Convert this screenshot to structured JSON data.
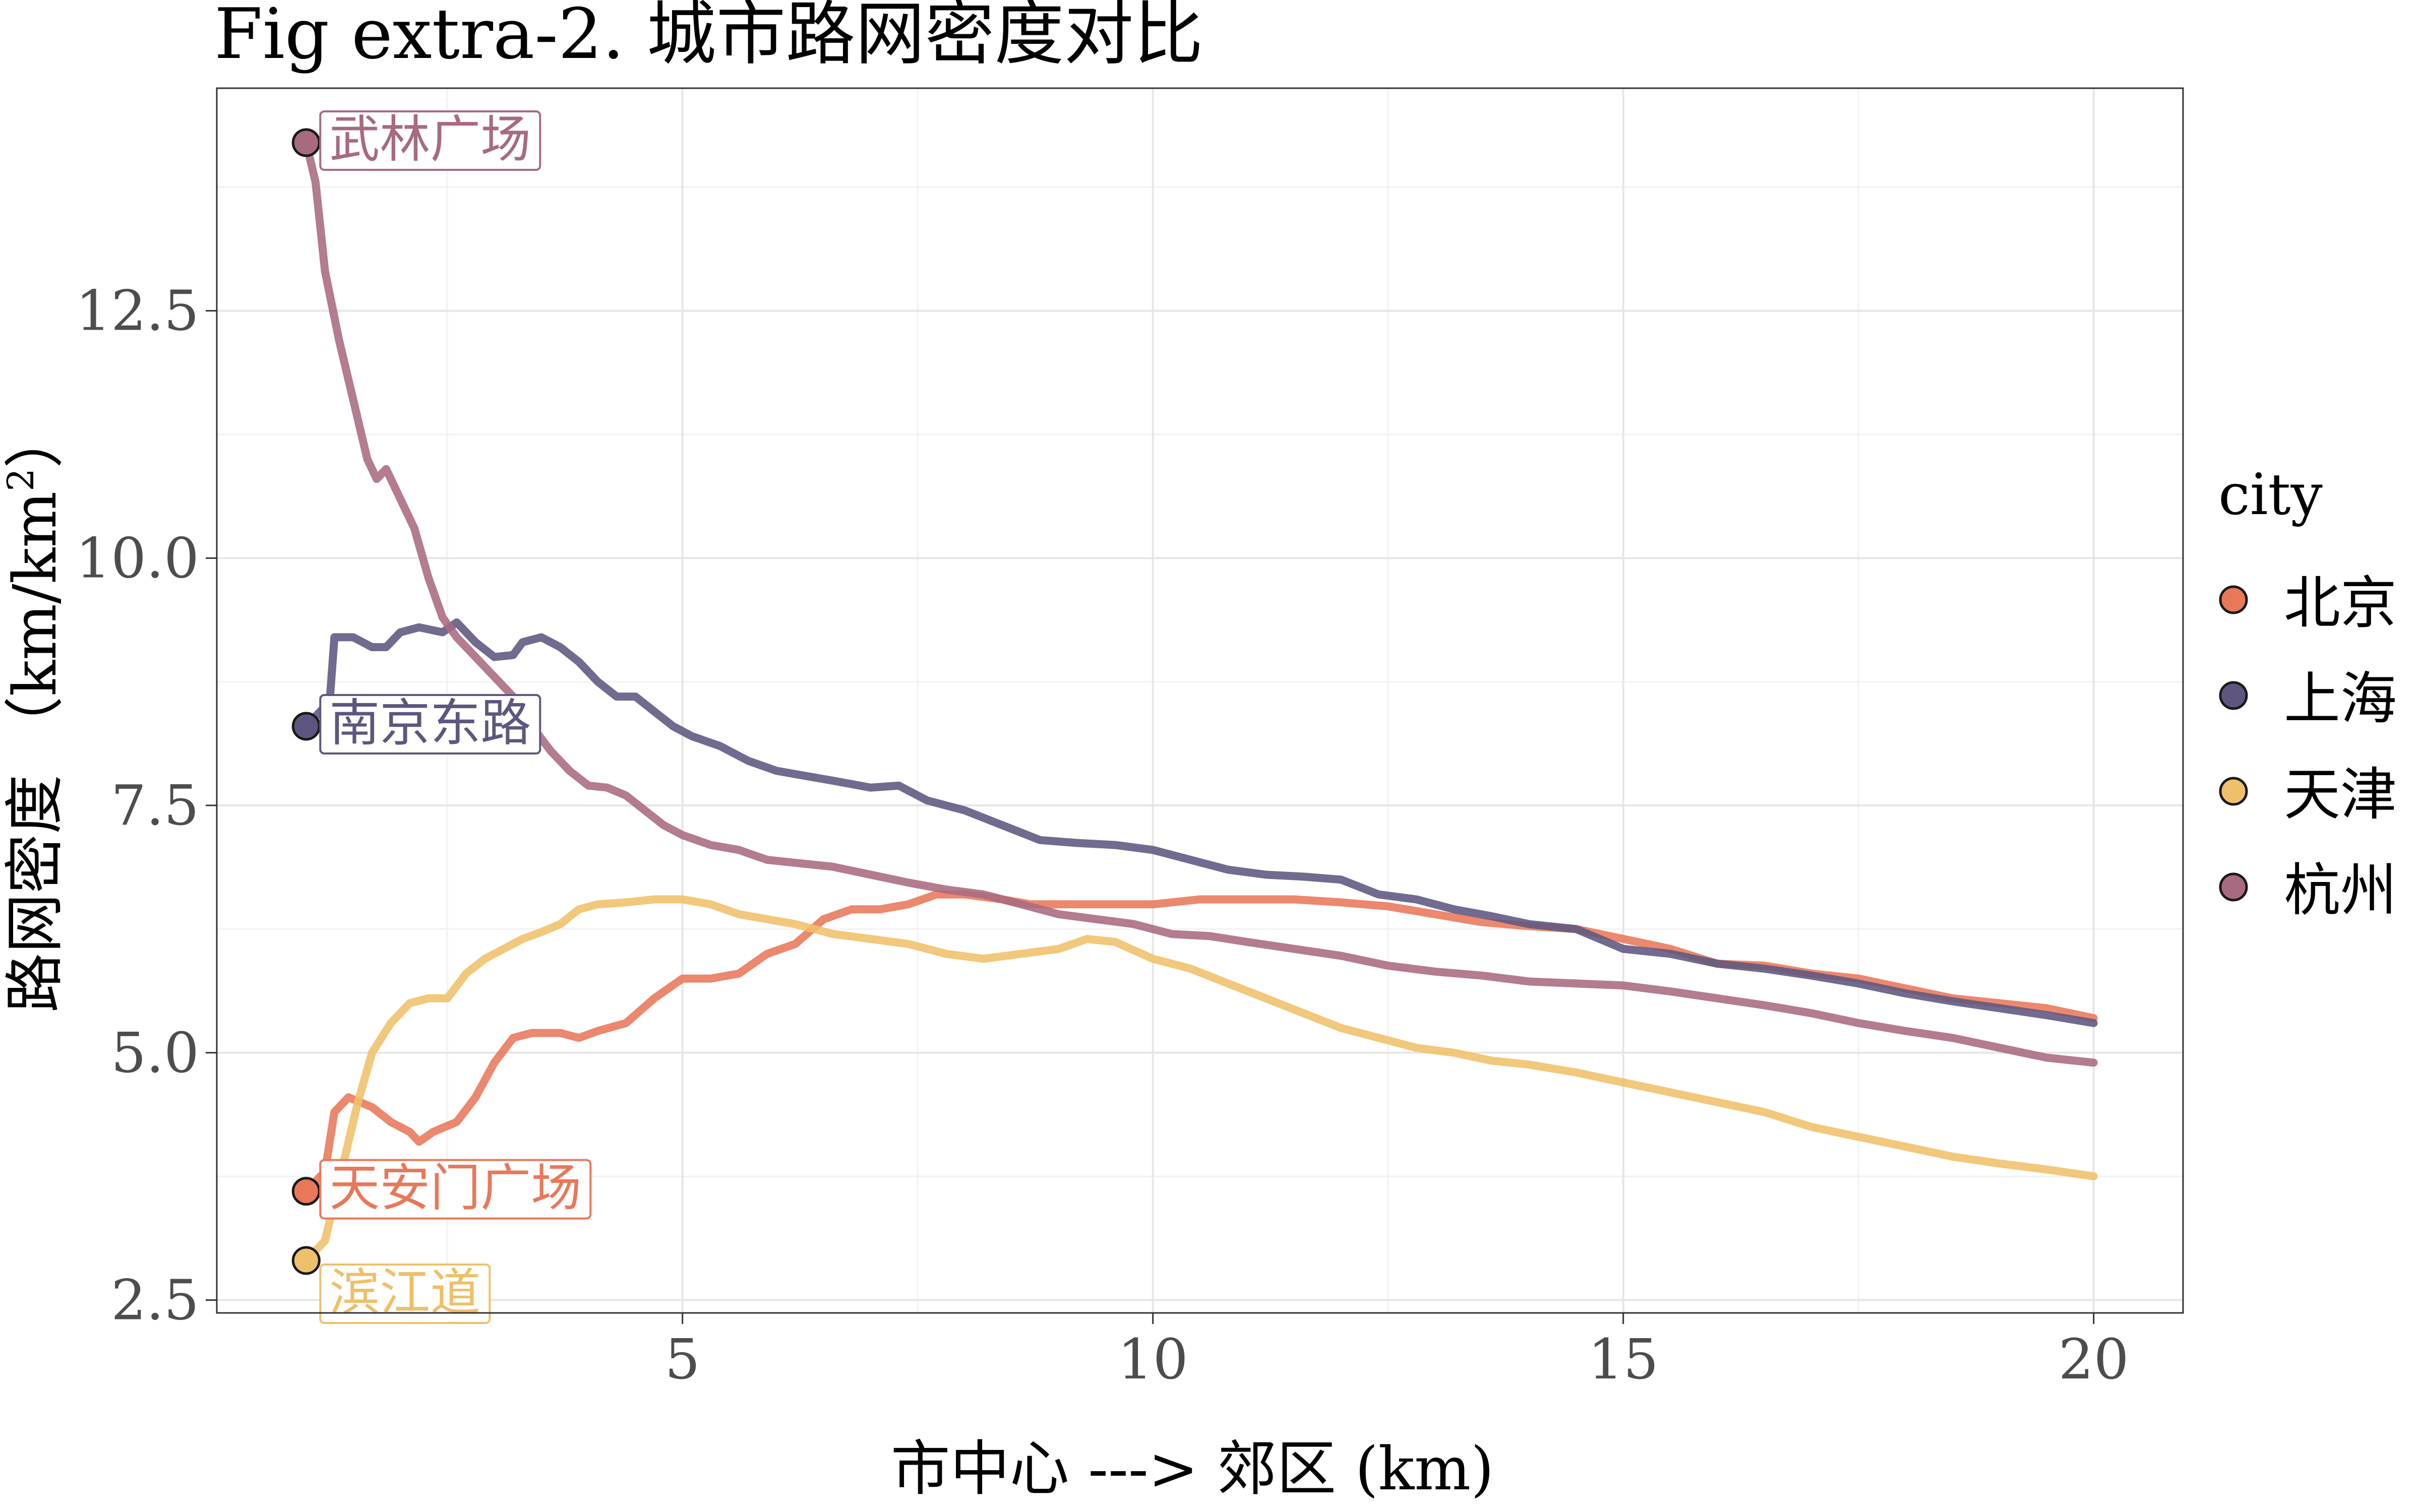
{
  "chart_data": {
    "type": "line",
    "title": "Fig extra-2. 城市路网密度对比",
    "xlabel": "市中心 ---> 郊区 (km)",
    "ylabel_text": "路网密度 （km/km",
    "ylabel_sup": "2",
    "ylabel_close": "）",
    "xlim": [
      0.05,
      20.95
    ],
    "ylim": [
      2.37,
      14.75
    ],
    "x_ticks": [
      5,
      10,
      15,
      20
    ],
    "x_tick_labels": [
      "5",
      "10",
      "15",
      "20"
    ],
    "y_ticks": [
      2.5,
      5.0,
      7.5,
      10.0,
      12.5
    ],
    "y_tick_labels": [
      "2.5",
      "5.0",
      "7.5",
      "10.0",
      "12.5"
    ],
    "grid": true,
    "legend_title": "city",
    "legend_position": "right",
    "series": [
      {
        "name": "北京",
        "color": "#E8785A",
        "start_label": "天安门广场",
        "points": [
          [
            1,
            3.6
          ],
          [
            1.2,
            3.8
          ],
          [
            1.3,
            4.4
          ],
          [
            1.45,
            4.55
          ],
          [
            1.7,
            4.45
          ],
          [
            1.9,
            4.3
          ],
          [
            2.1,
            4.2
          ],
          [
            2.2,
            4.1
          ],
          [
            2.35,
            4.2
          ],
          [
            2.6,
            4.3
          ],
          [
            2.8,
            4.55
          ],
          [
            3,
            4.9
          ],
          [
            3.2,
            5.15
          ],
          [
            3.4,
            5.2
          ],
          [
            3.7,
            5.2
          ],
          [
            3.9,
            5.15
          ],
          [
            4.1,
            5.22
          ],
          [
            4.4,
            5.3
          ],
          [
            4.7,
            5.55
          ],
          [
            5,
            5.75
          ],
          [
            5.3,
            5.75
          ],
          [
            5.6,
            5.8
          ],
          [
            5.9,
            6.0
          ],
          [
            6.2,
            6.1
          ],
          [
            6.5,
            6.35
          ],
          [
            6.8,
            6.45
          ],
          [
            7.1,
            6.45
          ],
          [
            7.4,
            6.5
          ],
          [
            7.7,
            6.6
          ],
          [
            8,
            6.6
          ],
          [
            8.4,
            6.55
          ],
          [
            8.7,
            6.5
          ],
          [
            9.2,
            6.5
          ],
          [
            9.6,
            6.5
          ],
          [
            10,
            6.5
          ],
          [
            10.5,
            6.55
          ],
          [
            11,
            6.55
          ],
          [
            11.5,
            6.55
          ],
          [
            12,
            6.52
          ],
          [
            12.5,
            6.48
          ],
          [
            13,
            6.4
          ],
          [
            13.5,
            6.32
          ],
          [
            14,
            6.28
          ],
          [
            14.5,
            6.25
          ],
          [
            15,
            6.15
          ],
          [
            15.5,
            6.05
          ],
          [
            16,
            5.9
          ],
          [
            16.5,
            5.88
          ],
          [
            17,
            5.8
          ],
          [
            17.5,
            5.75
          ],
          [
            18,
            5.65
          ],
          [
            18.5,
            5.55
          ],
          [
            19,
            5.5
          ],
          [
            19.5,
            5.45
          ],
          [
            20,
            5.35
          ]
        ]
      },
      {
        "name": "上海",
        "color": "#5E5680",
        "start_label": "南京东路",
        "points": [
          [
            1,
            8.3
          ],
          [
            1.1,
            8.4
          ],
          [
            1.25,
            8.55
          ],
          [
            1.3,
            9.2
          ],
          [
            1.5,
            9.2
          ],
          [
            1.7,
            9.1
          ],
          [
            1.85,
            9.1
          ],
          [
            2,
            9.25
          ],
          [
            2.2,
            9.3
          ],
          [
            2.45,
            9.25
          ],
          [
            2.6,
            9.35
          ],
          [
            2.8,
            9.15
          ],
          [
            3,
            9.0
          ],
          [
            3.2,
            9.02
          ],
          [
            3.3,
            9.15
          ],
          [
            3.5,
            9.2
          ],
          [
            3.7,
            9.1
          ],
          [
            3.9,
            8.95
          ],
          [
            4.1,
            8.75
          ],
          [
            4.3,
            8.6
          ],
          [
            4.5,
            8.6
          ],
          [
            4.7,
            8.45
          ],
          [
            4.9,
            8.3
          ],
          [
            5.1,
            8.2
          ],
          [
            5.4,
            8.1
          ],
          [
            5.7,
            7.95
          ],
          [
            6,
            7.85
          ],
          [
            6.3,
            7.8
          ],
          [
            6.6,
            7.75
          ],
          [
            7,
            7.68
          ],
          [
            7.3,
            7.7
          ],
          [
            7.6,
            7.55
          ],
          [
            8,
            7.45
          ],
          [
            8.4,
            7.3
          ],
          [
            8.8,
            7.15
          ],
          [
            9.2,
            7.12
          ],
          [
            9.6,
            7.1
          ],
          [
            10,
            7.05
          ],
          [
            10.4,
            6.95
          ],
          [
            10.8,
            6.85
          ],
          [
            11.2,
            6.8
          ],
          [
            11.6,
            6.78
          ],
          [
            12,
            6.75
          ],
          [
            12.4,
            6.6
          ],
          [
            12.8,
            6.55
          ],
          [
            13.2,
            6.45
          ],
          [
            13.6,
            6.38
          ],
          [
            14,
            6.3
          ],
          [
            14.5,
            6.25
          ],
          [
            15,
            6.05
          ],
          [
            15.5,
            6.0
          ],
          [
            16,
            5.9
          ],
          [
            16.5,
            5.85
          ],
          [
            17,
            5.78
          ],
          [
            17.5,
            5.7
          ],
          [
            18,
            5.6
          ],
          [
            18.5,
            5.52
          ],
          [
            19,
            5.45
          ],
          [
            19.5,
            5.38
          ],
          [
            20,
            5.3
          ]
        ]
      },
      {
        "name": "天津",
        "color": "#EFC06A",
        "start_label": "滨江道",
        "points": [
          [
            1,
            2.9
          ],
          [
            1.2,
            3.1
          ],
          [
            1.4,
            3.9
          ],
          [
            1.55,
            4.5
          ],
          [
            1.7,
            5.0
          ],
          [
            1.9,
            5.3
          ],
          [
            2.1,
            5.5
          ],
          [
            2.3,
            5.55
          ],
          [
            2.5,
            5.55
          ],
          [
            2.7,
            5.8
          ],
          [
            2.9,
            5.95
          ],
          [
            3.1,
            6.05
          ],
          [
            3.3,
            6.15
          ],
          [
            3.5,
            6.22
          ],
          [
            3.7,
            6.3
          ],
          [
            3.9,
            6.45
          ],
          [
            4.1,
            6.5
          ],
          [
            4.4,
            6.52
          ],
          [
            4.7,
            6.55
          ],
          [
            5,
            6.55
          ],
          [
            5.3,
            6.5
          ],
          [
            5.6,
            6.4
          ],
          [
            5.9,
            6.35
          ],
          [
            6.2,
            6.3
          ],
          [
            6.6,
            6.2
          ],
          [
            7,
            6.15
          ],
          [
            7.4,
            6.1
          ],
          [
            7.8,
            6.0
          ],
          [
            8.2,
            5.95
          ],
          [
            8.6,
            6.0
          ],
          [
            9,
            6.05
          ],
          [
            9.3,
            6.15
          ],
          [
            9.6,
            6.12
          ],
          [
            10,
            5.95
          ],
          [
            10.4,
            5.85
          ],
          [
            10.8,
            5.7
          ],
          [
            11.2,
            5.55
          ],
          [
            11.6,
            5.4
          ],
          [
            12,
            5.25
          ],
          [
            12.4,
            5.15
          ],
          [
            12.8,
            5.05
          ],
          [
            13.2,
            5.0
          ],
          [
            13.6,
            4.92
          ],
          [
            14,
            4.88
          ],
          [
            14.5,
            4.8
          ],
          [
            15,
            4.7
          ],
          [
            15.5,
            4.6
          ],
          [
            16,
            4.5
          ],
          [
            16.5,
            4.4
          ],
          [
            17,
            4.25
          ],
          [
            17.5,
            4.15
          ],
          [
            18,
            4.05
          ],
          [
            18.5,
            3.95
          ],
          [
            19,
            3.88
          ],
          [
            19.5,
            3.82
          ],
          [
            20,
            3.75
          ]
        ]
      },
      {
        "name": "杭州",
        "color": "#A86A80",
        "start_label": "武林广场",
        "points": [
          [
            1,
            14.2
          ],
          [
            1.1,
            13.8
          ],
          [
            1.2,
            12.9
          ],
          [
            1.35,
            12.2
          ],
          [
            1.5,
            11.6
          ],
          [
            1.65,
            11.0
          ],
          [
            1.75,
            10.8
          ],
          [
            1.85,
            10.9
          ],
          [
            2,
            10.6
          ],
          [
            2.15,
            10.3
          ],
          [
            2.3,
            9.8
          ],
          [
            2.45,
            9.4
          ],
          [
            2.6,
            9.2
          ],
          [
            2.8,
            9.0
          ],
          [
            3,
            8.8
          ],
          [
            3.2,
            8.6
          ],
          [
            3.4,
            8.3
          ],
          [
            3.6,
            8.05
          ],
          [
            3.8,
            7.85
          ],
          [
            4,
            7.7
          ],
          [
            4.2,
            7.68
          ],
          [
            4.4,
            7.6
          ],
          [
            4.6,
            7.45
          ],
          [
            4.8,
            7.3
          ],
          [
            5,
            7.2
          ],
          [
            5.3,
            7.1
          ],
          [
            5.6,
            7.05
          ],
          [
            5.9,
            6.95
          ],
          [
            6.2,
            6.92
          ],
          [
            6.6,
            6.88
          ],
          [
            7,
            6.8
          ],
          [
            7.4,
            6.72
          ],
          [
            7.8,
            6.65
          ],
          [
            8.2,
            6.6
          ],
          [
            8.6,
            6.5
          ],
          [
            9,
            6.4
          ],
          [
            9.4,
            6.35
          ],
          [
            9.8,
            6.3
          ],
          [
            10.2,
            6.2
          ],
          [
            10.6,
            6.18
          ],
          [
            11,
            6.12
          ],
          [
            11.5,
            6.05
          ],
          [
            12,
            5.98
          ],
          [
            12.5,
            5.88
          ],
          [
            13,
            5.82
          ],
          [
            13.5,
            5.78
          ],
          [
            14,
            5.72
          ],
          [
            14.5,
            5.7
          ],
          [
            15,
            5.68
          ],
          [
            15.5,
            5.62
          ],
          [
            16,
            5.55
          ],
          [
            16.5,
            5.48
          ],
          [
            17,
            5.4
          ],
          [
            17.5,
            5.3
          ],
          [
            18,
            5.22
          ],
          [
            18.5,
            5.15
          ],
          [
            19,
            5.05
          ],
          [
            19.5,
            4.95
          ],
          [
            20,
            4.9
          ]
        ]
      }
    ]
  }
}
